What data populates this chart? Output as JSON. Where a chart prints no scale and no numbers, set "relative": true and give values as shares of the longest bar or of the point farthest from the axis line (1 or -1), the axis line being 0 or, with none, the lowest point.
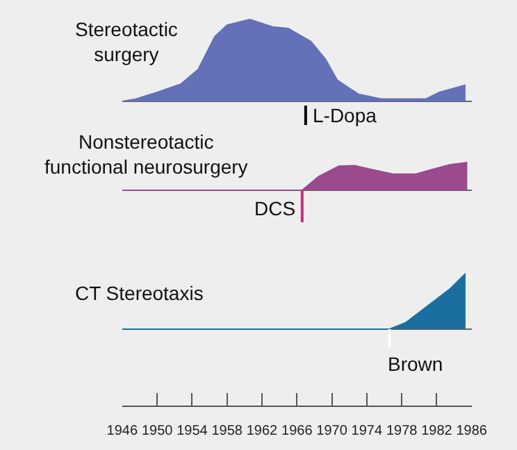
{
  "chart_data": [
    {
      "type": "area",
      "title": "Stereotactic\nsurgery",
      "relative": true,
      "xlim": [
        1946,
        1986
      ],
      "tick_labels": false,
      "xticks": [
        1946,
        1950,
        1954,
        1958,
        1962,
        1966,
        1970,
        1974,
        1978,
        1982,
        1986
      ],
      "x": [
        1946,
        1947.6,
        1950,
        1952.7,
        1954.7,
        1956.6,
        1958,
        1960.6,
        1963.2,
        1965,
        1967.6,
        1969.3,
        1970.6,
        1973,
        1975.6,
        1980.8,
        1982.3,
        1985.3
      ],
      "series": [
        {
          "color": "#6470b8",
          "values": [
            0,
            0.03,
            0.11,
            0.21,
            0.39,
            0.79,
            0.93,
            1,
            0.91,
            0.89,
            0.73,
            0.51,
            0.26,
            0.09,
            0.03,
            0.03,
            0.11,
            0.2
          ]
        }
      ],
      "ref_lines": [
        {
          "axis": "x",
          "value": 1967,
          "label": "L-Dopa",
          "color": "#000000"
        }
      ]
    },
    {
      "type": "area",
      "title": "Nonstereotactic\nfunctional neurosurgery",
      "relative": true,
      "xlim": [
        1946,
        1986
      ],
      "tick_labels": false,
      "xticks": [
        1946,
        1950,
        1954,
        1958,
        1962,
        1966,
        1970,
        1974,
        1978,
        1982,
        1986
      ],
      "x": [
        1946,
        1966.6,
        1968.5,
        1970.8,
        1972.6,
        1974.5,
        1977,
        1979.6,
        1981.5,
        1983.5,
        1985.5
      ],
      "series": [
        {
          "color": "#9b4a8e",
          "values": [
            0,
            0,
            0.5,
            0.87,
            0.89,
            0.75,
            0.58,
            0.58,
            0.75,
            0.92,
            1
          ]
        }
      ],
      "ref_lines": [
        {
          "axis": "x",
          "value": 1966.6,
          "label": "DCS",
          "color": "#c0307f"
        }
      ]
    },
    {
      "type": "area",
      "title": "CT Stereotaxis",
      "relative": true,
      "xlim": [
        1946,
        1986
      ],
      "tick_labels": "x",
      "xticks": [
        1946,
        1950,
        1954,
        1958,
        1962,
        1966,
        1970,
        1974,
        1978,
        1982,
        1986
      ],
      "x": [
        1946,
        1976.6,
        1978.5,
        1981,
        1983.5,
        1985.3
      ],
      "series": [
        {
          "color": "#1a6fa0",
          "values": [
            0,
            0,
            0.12,
            0.42,
            0.72,
            1
          ]
        }
      ],
      "ref_lines": [
        {
          "axis": "x",
          "value": 1976.6,
          "label": "Brown",
          "color": "#ffffff"
        }
      ]
    }
  ]
}
